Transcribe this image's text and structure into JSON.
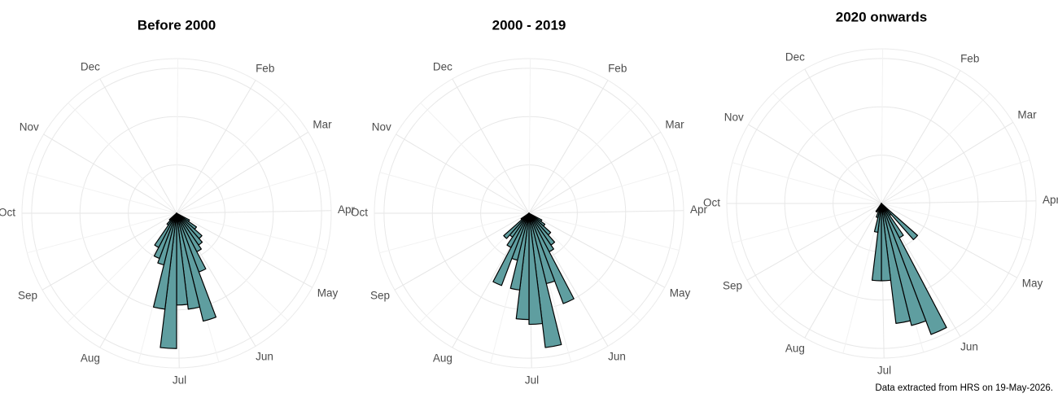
{
  "chart_data": [
    {
      "type": "polar_bar",
      "title": "Before 2000",
      "color": "#5f9ea0",
      "x": [
        18,
        19,
        20,
        21,
        22,
        23,
        24,
        25,
        26,
        27,
        28,
        29,
        30,
        31,
        32,
        33
      ],
      "values": [
        3,
        5,
        7,
        8,
        9,
        13,
        23,
        20,
        19,
        28,
        20,
        11,
        10,
        8,
        3,
        2
      ],
      "xlim": [
        0,
        52
      ],
      "rlim": [
        0,
        32
      ],
      "rticks": [
        10,
        20,
        30
      ],
      "xticks": [
        {
          "value": 4.43,
          "label": "Feb"
        },
        {
          "value": 8.43,
          "label": "Mar"
        },
        {
          "value": 12.86,
          "label": "Apr"
        },
        {
          "value": 17.14,
          "label": "May"
        },
        {
          "value": 21.57,
          "label": "Jun"
        },
        {
          "value": 25.86,
          "label": "Jul"
        },
        {
          "value": 30.29,
          "label": "Aug"
        },
        {
          "value": 34.71,
          "label": "Sep"
        },
        {
          "value": 39,
          "label": "Oct"
        },
        {
          "value": 43.43,
          "label": "Nov"
        },
        {
          "value": 47.71,
          "label": "Dec"
        }
      ]
    },
    {
      "type": "polar_bar",
      "title": "2000 - 2019",
      "color": "#5f9ea0",
      "x": [
        18,
        19,
        20,
        21,
        22,
        23,
        24,
        25,
        26,
        27,
        28,
        29,
        30,
        31,
        32,
        33,
        34
      ],
      "values": [
        3,
        4,
        6,
        8,
        9,
        20,
        15,
        28,
        23,
        22,
        16,
        10,
        16,
        8,
        6,
        7,
        2
      ],
      "xlim": [
        0,
        52
      ],
      "rlim": [
        0,
        32
      ],
      "rticks": [
        10,
        20,
        30
      ],
      "xticks": [
        {
          "value": 4.43,
          "label": "Feb"
        },
        {
          "value": 8.43,
          "label": "Mar"
        },
        {
          "value": 12.86,
          "label": "Apr"
        },
        {
          "value": 17.14,
          "label": "May"
        },
        {
          "value": 21.57,
          "label": "Jun"
        },
        {
          "value": 25.86,
          "label": "Jul"
        },
        {
          "value": 30.29,
          "label": "Aug"
        },
        {
          "value": 34.71,
          "label": "Sep"
        },
        {
          "value": 39,
          "label": "Oct"
        },
        {
          "value": 43.43,
          "label": "Nov"
        },
        {
          "value": 47.71,
          "label": "Dec"
        }
      ]
    },
    {
      "type": "polar_bar",
      "title": "2020 onwards",
      "color": "#5f9ea0",
      "x": [
        20,
        21,
        22,
        23,
        24,
        25,
        26,
        27,
        28,
        29,
        31
      ],
      "values": [
        10,
        3,
        8,
        29,
        26,
        25,
        16,
        16,
        6,
        3,
        2
      ],
      "xlim": [
        0,
        52
      ],
      "rlim": [
        0,
        32
      ],
      "rticks": [
        10,
        20,
        30
      ],
      "xticks": [
        {
          "value": 4.43,
          "label": "Feb"
        },
        {
          "value": 8.43,
          "label": "Mar"
        },
        {
          "value": 12.86,
          "label": "Apr"
        },
        {
          "value": 17.14,
          "label": "May"
        },
        {
          "value": 21.57,
          "label": "Jun"
        },
        {
          "value": 25.86,
          "label": "Jul"
        },
        {
          "value": 30.29,
          "label": "Aug"
        },
        {
          "value": 34.71,
          "label": "Sep"
        },
        {
          "value": 39,
          "label": "Oct"
        },
        {
          "value": 43.43,
          "label": "Nov"
        },
        {
          "value": 47.71,
          "label": "Dec"
        }
      ]
    }
  ],
  "caption": "Data extracted from HRS on 19-May-2026."
}
